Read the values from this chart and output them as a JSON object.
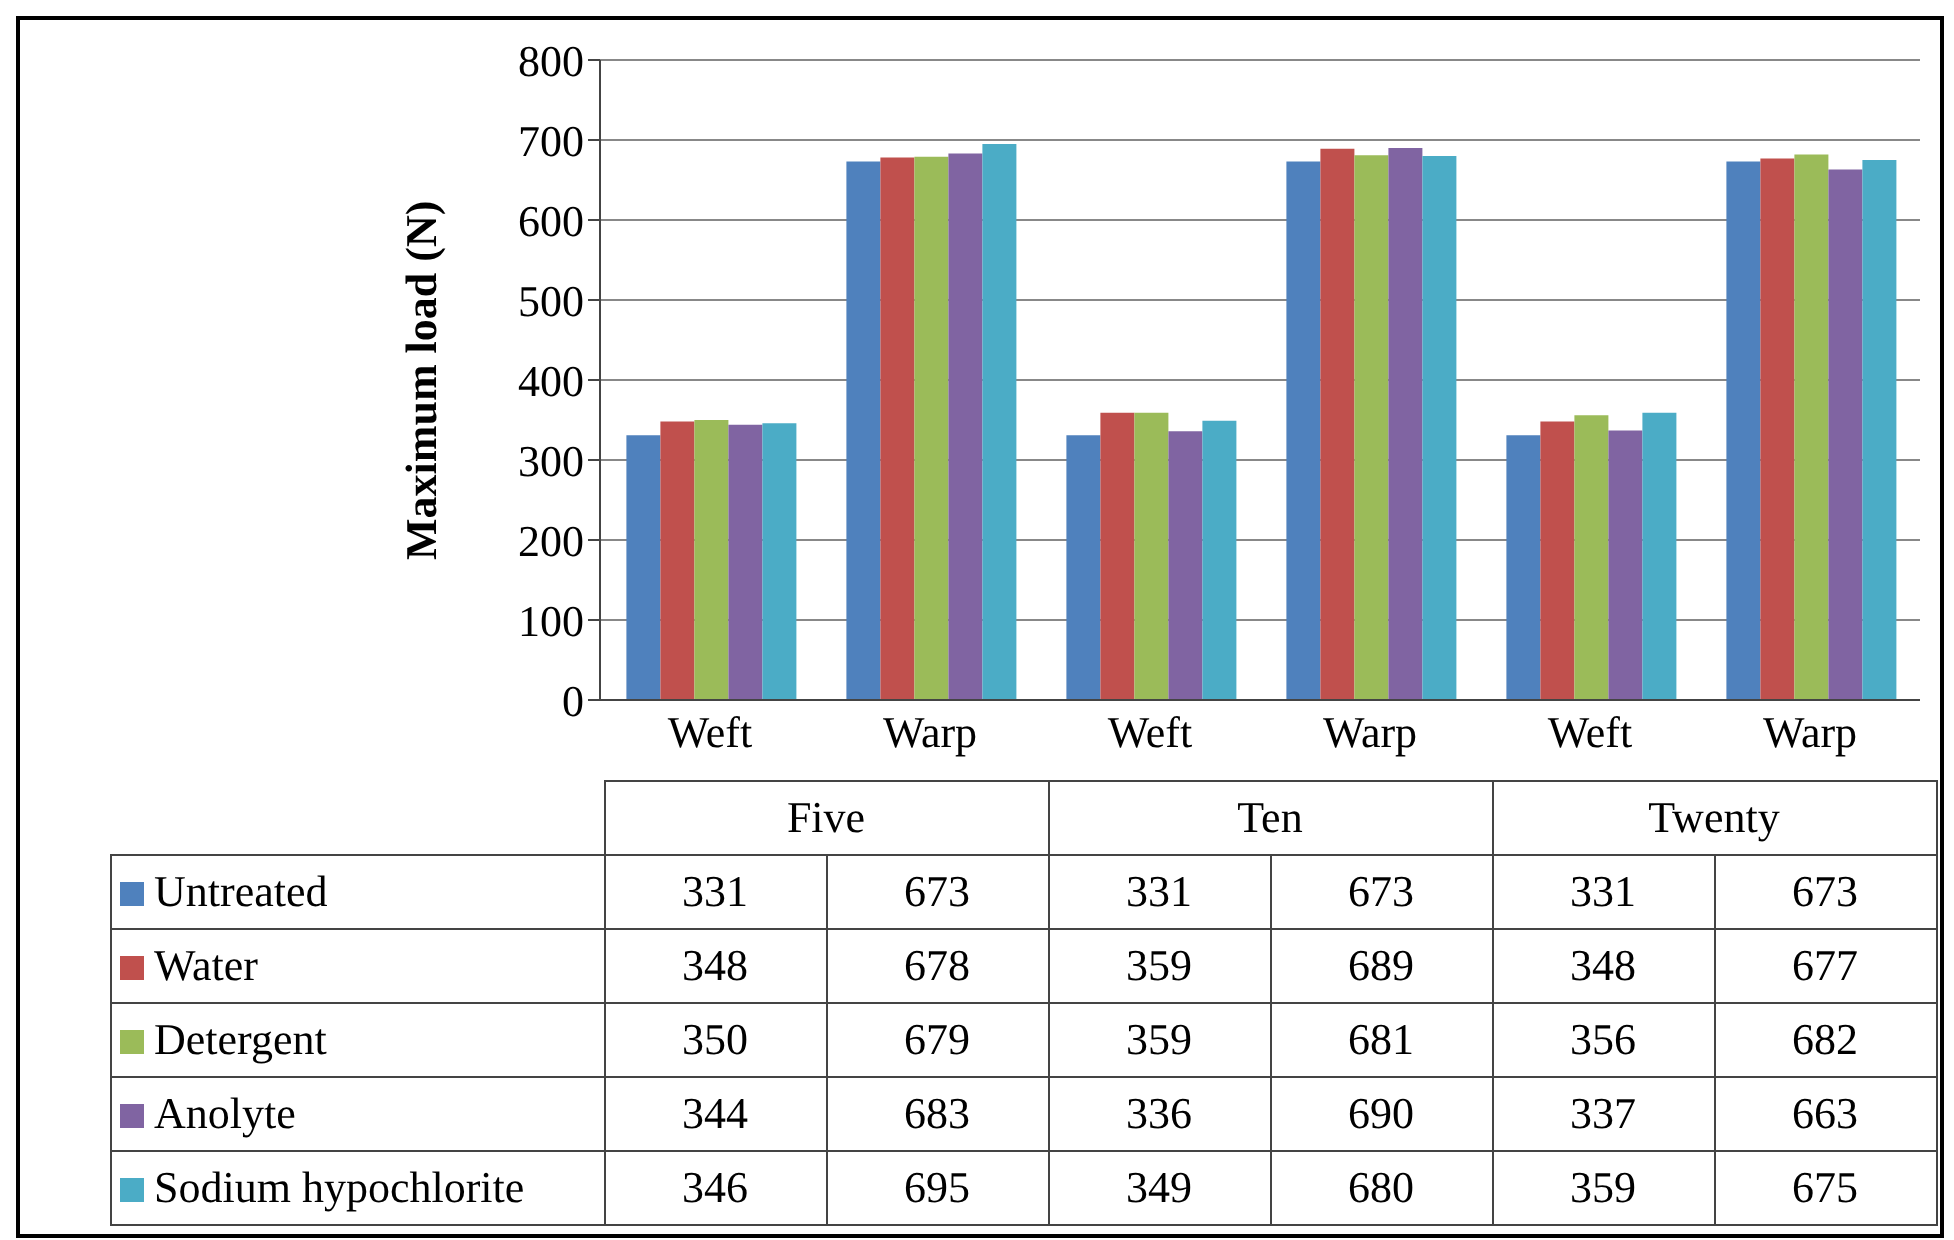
{
  "chart_data": {
    "type": "bar",
    "ylabel": "Maximum load (N)",
    "categories": [
      "Weft",
      "Warp",
      "Weft",
      "Warp",
      "Weft",
      "Warp"
    ],
    "annotations": [
      "Five",
      "Ten",
      "Twenty"
    ],
    "series": [
      {
        "name": "Untreated",
        "color": "#4f81bd",
        "values": [
          331,
          673,
          331,
          673,
          331,
          673
        ]
      },
      {
        "name": "Water",
        "color": "#c0504d",
        "values": [
          348,
          678,
          359,
          689,
          348,
          677
        ]
      },
      {
        "name": "Detergent",
        "color": "#9bbb59",
        "values": [
          350,
          679,
          359,
          681,
          356,
          682
        ]
      },
      {
        "name": "Anolyte",
        "color": "#8064a2",
        "values": [
          344,
          683,
          336,
          690,
          337,
          663
        ]
      },
      {
        "name": "Sodium hypochlorite",
        "color": "#4bacc6",
        "values": [
          346,
          695,
          349,
          680,
          359,
          675
        ]
      }
    ],
    "ylim": [
      0,
      800
    ],
    "yticks": [
      0,
      100,
      200,
      300,
      400,
      500,
      600,
      700,
      800
    ],
    "grid": "y",
    "legend": "bottom",
    "data_labels": true
  }
}
